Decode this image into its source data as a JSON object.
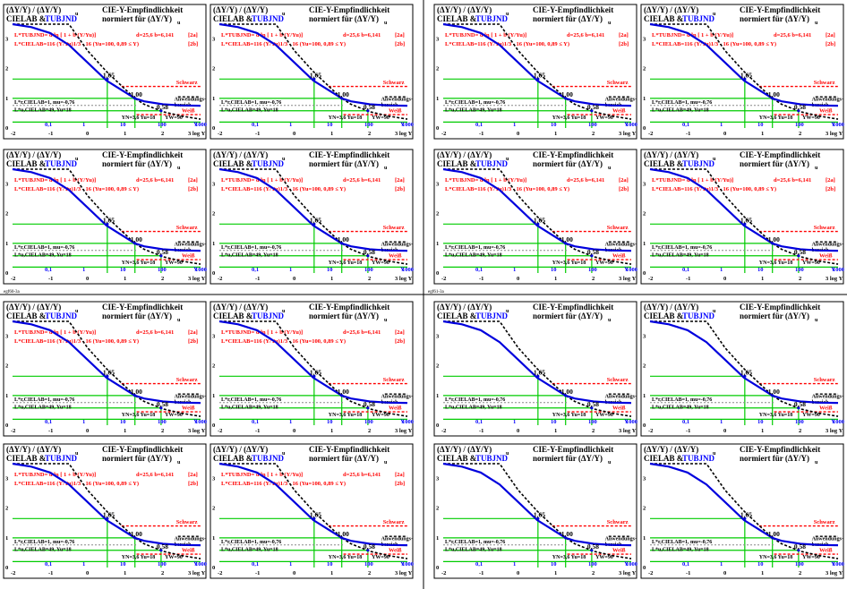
{
  "panel": {
    "header": {
      "ratio_line": "(ΔY/Y) / (ΔY/Y)",
      "ratio_sub": "u",
      "cielab": "CIELAB &",
      "tubjnd": "TUBJND",
      "title1": "CIE-Y-Empfindlichkeit",
      "title2": "normiert für (ΔY/Y)",
      "title2_sub": "u"
    },
    "formulas": {
      "tubjnd_line": "L*TUBJND= d ln [ 1 + b (Y/Yu)]",
      "cielab_line": "L*CIELAB=116 (Y/Yu)1/3 - 16  (Yu=100, 0,89 ≤ Y)",
      "d_b": "d=25,6   b=6,141",
      "tag_a": "[2a]",
      "tag_b": "[2b]"
    },
    "labels": {
      "schwarz": "Schwarz",
      "weiss": "Weiß",
      "anwendung1": "Anwendungs-",
      "anwendung2": "bereich",
      "cielab_r": "L*r,CIELAB=1, mu=-0,76",
      "cielab_u": "L*u,CIELAB=49, Yu=18",
      "yn_yu": "YN=3,6  Yu=18",
      "yw": "YW=90",
      "val_165": "1,65",
      "val_100": "1,00",
      "val_058": "0,58",
      "y_letter": "Y",
      "log_y": "3 log Y"
    },
    "y_ticks": [
      "0",
      "1",
      "2",
      "3"
    ],
    "x_ticks": [
      "-2",
      "-1",
      "0",
      "1",
      "2"
    ],
    "y_value_ticks": [
      "0,1",
      "1",
      "10",
      "100",
      "1000"
    ]
  },
  "grid_labels": [
    "egf60-3a",
    "egf61-3a"
  ],
  "colors": {
    "curve": "#0000dd",
    "cielab_dash": "#000000",
    "red_dash": "#ff0000",
    "green": "#00cc00",
    "title_blue": "#0000ff"
  },
  "chart_data": {
    "type": "line",
    "xlabel": "log Y",
    "ylabel": "(ΔY/Y) / (ΔY/Y)u",
    "xlim": [
      -2,
      3
    ],
    "ylim": [
      0,
      3.5
    ],
    "x_log": [
      -2,
      -1.5,
      -1,
      -0.5,
      0,
      0.5,
      1,
      1.255,
      1.5,
      2,
      2.5,
      3
    ],
    "series": [
      {
        "name": "TUBJND",
        "y": [
          3.5,
          3.4,
          3.2,
          2.8,
          2.2,
          1.6,
          1.2,
          1.0,
          0.9,
          0.8,
          0.76,
          0.75
        ]
      },
      {
        "name": "CIELAB",
        "y": [
          3.5,
          3.5,
          3.5,
          3.5,
          2.6,
          1.9,
          1.3,
          1.0,
          0.8,
          0.55,
          0.4,
          0.3
        ]
      }
    ],
    "markers": [
      {
        "label": "1,65",
        "x": 0.52,
        "y": 1.65
      },
      {
        "label": "1,00",
        "x": 1.255,
        "y": 1.0
      },
      {
        "label": "0,58",
        "x": 1.95,
        "y": 0.58
      }
    ]
  }
}
